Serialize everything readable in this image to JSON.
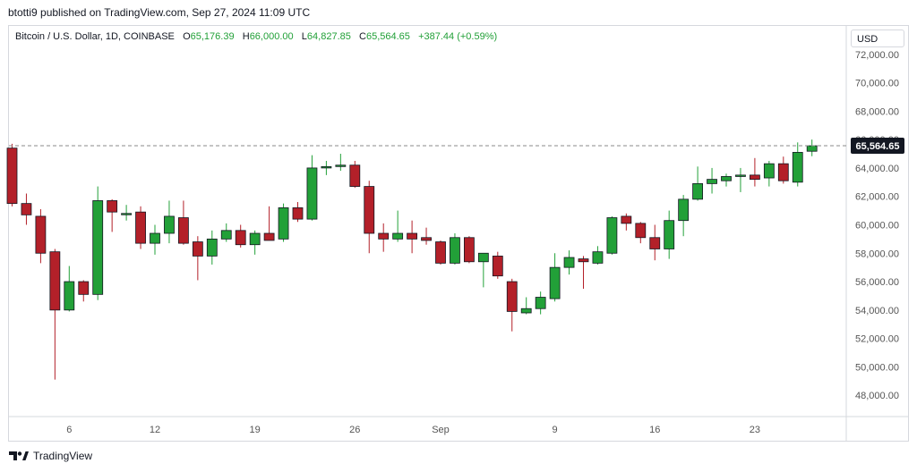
{
  "header": {
    "published_by": "btotti9 published on TradingView.com, Sep 27, 2024 11:09 UTC"
  },
  "legend": {
    "symbol": "Bitcoin / U.S. Dollar, 1D, COINBASE",
    "open_label": "O",
    "open": "65,176.39",
    "high_label": "H",
    "high": "66,000.00",
    "low_label": "L",
    "low": "64,827.85",
    "close_label": "C",
    "close": "65,564.65",
    "change": "+387.44 (+0.59%)"
  },
  "price_scale": {
    "currency": "USD",
    "last_price_label": "65,564.65"
  },
  "footer": {
    "brand": "TradingView"
  },
  "colors": {
    "up": "#22a038",
    "down": "#b32029",
    "last_price_bg": "#131722",
    "axis_text": "#555555"
  },
  "chart_data": {
    "type": "candlestick",
    "title": "Bitcoin / U.S. Dollar, 1D, COINBASE",
    "ylim": [
      46500,
      74000
    ],
    "y_ticks": [
      48000,
      50000,
      52000,
      54000,
      56000,
      58000,
      60000,
      62000,
      64000,
      66000,
      68000,
      70000,
      72000
    ],
    "y_tick_labels": [
      "48,000.00",
      "50,000.00",
      "52,000.00",
      "54,000.00",
      "56,000.00",
      "58,000.00",
      "60,000.00",
      "62,000.00",
      "64,000.00",
      "66,000.00",
      "68,000.00",
      "70,000.00",
      "72,000.00"
    ],
    "x_tick_labels": [
      {
        "index": 4,
        "label": "6"
      },
      {
        "index": 10,
        "label": "12"
      },
      {
        "index": 17,
        "label": "19"
      },
      {
        "index": 24,
        "label": "26"
      },
      {
        "index": 30,
        "label": "Sep"
      },
      {
        "index": 38,
        "label": "9"
      },
      {
        "index": 45,
        "label": "16"
      },
      {
        "index": 52,
        "label": "23"
      }
    ],
    "last_price": 65564.65,
    "candles": [
      {
        "o": 65400,
        "h": 65700,
        "l": 61300,
        "c": 61500
      },
      {
        "o": 61500,
        "h": 62200,
        "l": 60000,
        "c": 60700
      },
      {
        "o": 60600,
        "h": 61100,
        "l": 57300,
        "c": 58000
      },
      {
        "o": 58100,
        "h": 58300,
        "l": 49100,
        "c": 54000
      },
      {
        "o": 54000,
        "h": 57100,
        "l": 53900,
        "c": 56000
      },
      {
        "o": 56000,
        "h": 56100,
        "l": 54600,
        "c": 55100
      },
      {
        "o": 55100,
        "h": 62700,
        "l": 54700,
        "c": 61700
      },
      {
        "o": 61700,
        "h": 61800,
        "l": 59500,
        "c": 60900
      },
      {
        "o": 60800,
        "h": 61400,
        "l": 60300,
        "c": 60800
      },
      {
        "o": 60900,
        "h": 61300,
        "l": 58300,
        "c": 58700
      },
      {
        "o": 58700,
        "h": 60000,
        "l": 57900,
        "c": 59400
      },
      {
        "o": 59400,
        "h": 61700,
        "l": 58700,
        "c": 60600
      },
      {
        "o": 60500,
        "h": 61700,
        "l": 58600,
        "c": 58700
      },
      {
        "o": 58800,
        "h": 59200,
        "l": 56100,
        "c": 57800
      },
      {
        "o": 57800,
        "h": 59600,
        "l": 57200,
        "c": 59000
      },
      {
        "o": 59000,
        "h": 60100,
        "l": 58800,
        "c": 59600
      },
      {
        "o": 59600,
        "h": 60000,
        "l": 58400,
        "c": 58600
      },
      {
        "o": 58600,
        "h": 59600,
        "l": 57900,
        "c": 59400
      },
      {
        "o": 59400,
        "h": 61300,
        "l": 58900,
        "c": 58900
      },
      {
        "o": 59000,
        "h": 61500,
        "l": 58800,
        "c": 61200
      },
      {
        "o": 61200,
        "h": 61600,
        "l": 60200,
        "c": 60400
      },
      {
        "o": 60400,
        "h": 64900,
        "l": 60300,
        "c": 64000
      },
      {
        "o": 64000,
        "h": 64500,
        "l": 63500,
        "c": 64100
      },
      {
        "o": 64100,
        "h": 65000,
        "l": 63800,
        "c": 64200
      },
      {
        "o": 64200,
        "h": 64500,
        "l": 62600,
        "c": 62700
      },
      {
        "o": 62700,
        "h": 63100,
        "l": 58000,
        "c": 59400
      },
      {
        "o": 59400,
        "h": 60100,
        "l": 58100,
        "c": 59000
      },
      {
        "o": 59000,
        "h": 61000,
        "l": 58800,
        "c": 59400
      },
      {
        "o": 59400,
        "h": 60300,
        "l": 58000,
        "c": 59000
      },
      {
        "o": 59100,
        "h": 59800,
        "l": 58600,
        "c": 58900
      },
      {
        "o": 58800,
        "h": 58900,
        "l": 57200,
        "c": 57300
      },
      {
        "o": 57300,
        "h": 59400,
        "l": 57200,
        "c": 59100
      },
      {
        "o": 59100,
        "h": 59200,
        "l": 57300,
        "c": 57400
      },
      {
        "o": 57400,
        "h": 57900,
        "l": 55600,
        "c": 58000
      },
      {
        "o": 57800,
        "h": 58100,
        "l": 56200,
        "c": 56400
      },
      {
        "o": 56000,
        "h": 56200,
        "l": 52500,
        "c": 53900
      },
      {
        "o": 53800,
        "h": 54900,
        "l": 53700,
        "c": 54100
      },
      {
        "o": 54100,
        "h": 55300,
        "l": 53700,
        "c": 54900
      },
      {
        "o": 54800,
        "h": 58000,
        "l": 54600,
        "c": 57000
      },
      {
        "o": 57000,
        "h": 58200,
        "l": 56500,
        "c": 57700
      },
      {
        "o": 57600,
        "h": 57800,
        "l": 55500,
        "c": 57400
      },
      {
        "o": 57300,
        "h": 58500,
        "l": 57200,
        "c": 58100
      },
      {
        "o": 58000,
        "h": 60600,
        "l": 57900,
        "c": 60500
      },
      {
        "o": 60600,
        "h": 60800,
        "l": 59600,
        "c": 60100
      },
      {
        "o": 60100,
        "h": 60200,
        "l": 58700,
        "c": 59100
      },
      {
        "o": 59100,
        "h": 60000,
        "l": 57500,
        "c": 58300
      },
      {
        "o": 58300,
        "h": 61000,
        "l": 57600,
        "c": 60300
      },
      {
        "o": 60300,
        "h": 62100,
        "l": 59200,
        "c": 61800
      },
      {
        "o": 61800,
        "h": 64100,
        "l": 61700,
        "c": 62900
      },
      {
        "o": 62900,
        "h": 64000,
        "l": 62200,
        "c": 63200
      },
      {
        "o": 63100,
        "h": 63600,
        "l": 62700,
        "c": 63400
      },
      {
        "o": 63400,
        "h": 64000,
        "l": 62300,
        "c": 63500
      },
      {
        "o": 63500,
        "h": 64700,
        "l": 62700,
        "c": 63200
      },
      {
        "o": 63300,
        "h": 64500,
        "l": 62700,
        "c": 64300
      },
      {
        "o": 64300,
        "h": 64800,
        "l": 62900,
        "c": 63100
      },
      {
        "o": 63000,
        "h": 65800,
        "l": 62700,
        "c": 65100
      },
      {
        "o": 65176.39,
        "h": 66000,
        "l": 64827.85,
        "c": 65564.65
      }
    ]
  }
}
